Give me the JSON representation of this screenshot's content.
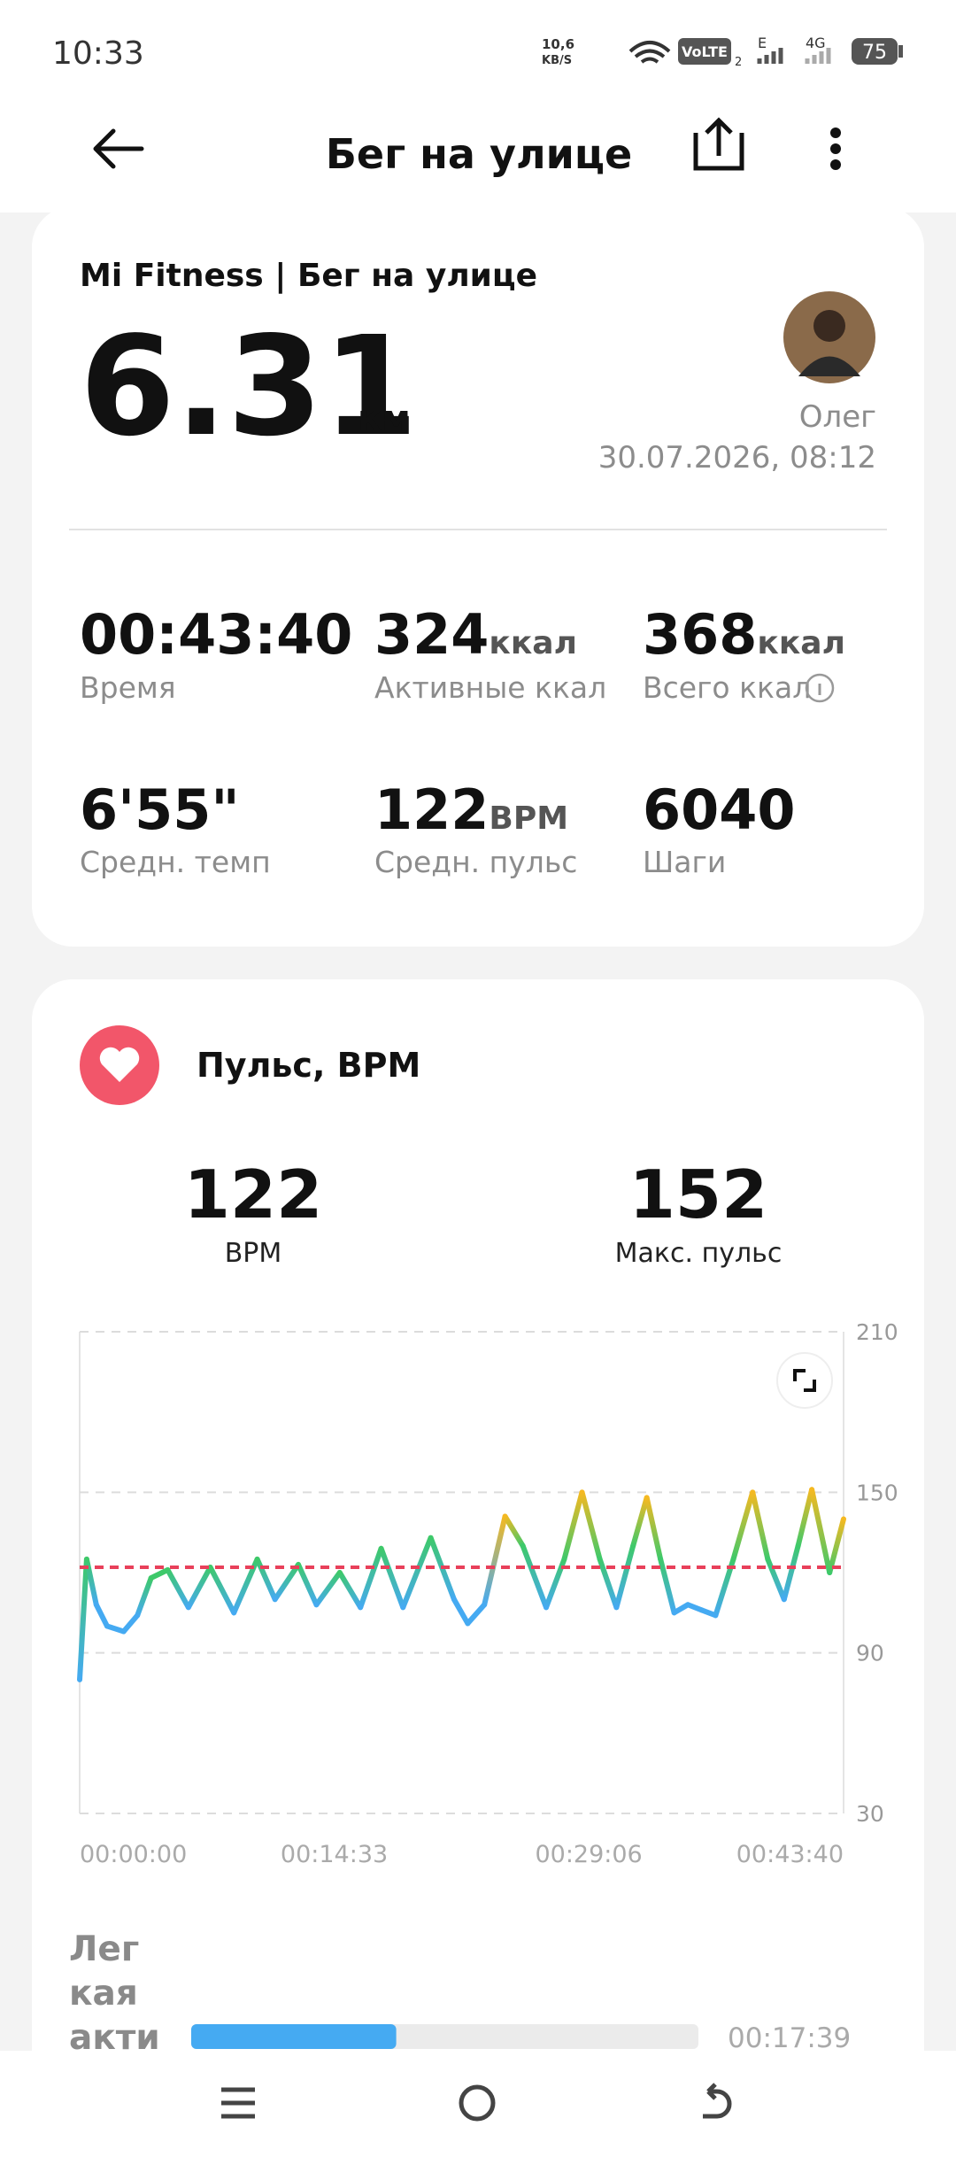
{
  "status_bar": {
    "time": "10:33",
    "net_speed": "10,6",
    "net_unit": "KB/S",
    "volte": "VoLTE",
    "sim": "2",
    "e": "E",
    "g4": "4G",
    "battery": "75"
  },
  "header": {
    "title": "Бег на улице"
  },
  "summary": {
    "source": "Mi Fitness | Бег на улице",
    "distance": "6.31",
    "distance_unit": "км",
    "user": "Олег",
    "datetime": "30.07.2026, 08:12",
    "stats": [
      {
        "value": "00:43:40",
        "label": "Время"
      },
      {
        "value": "324",
        "unit": "ккал",
        "label": "Активные ккал"
      },
      {
        "value": "368",
        "unit": "ккал",
        "label": "Всего ккал"
      },
      {
        "value": "6'55\"",
        "label": "Средн. темп"
      },
      {
        "value": "122",
        "unit": "BPM",
        "label": "Средн. пульс"
      },
      {
        "value": "6040",
        "label": "Шаги"
      }
    ]
  },
  "heart": {
    "title": "Пульс, BPM",
    "avg": "122",
    "avg_label": "BPM",
    "max": "152",
    "max_label": "Макс. пульс"
  },
  "chart_data": {
    "type": "line",
    "x": [
      0,
      24,
      57,
      94,
      151,
      198,
      245,
      302,
      373,
      448,
      529,
      609,
      670,
      750,
      812,
      892,
      963,
      1034,
      1109,
      1204,
      1284,
      1331,
      1388,
      1459,
      1520,
      1600,
      1662,
      1723,
      1784,
      1841,
      1898,
      1945,
      1992,
      2039,
      2086,
      2133,
      2181,
      2242,
      2308,
      2360,
      2416,
      2464,
      2511,
      2572,
      2620
    ],
    "values": [
      80,
      125,
      108,
      100,
      98,
      104,
      118,
      121,
      107,
      122,
      105,
      125,
      110,
      123,
      108,
      120,
      107,
      129,
      107,
      133,
      110,
      101,
      108,
      141,
      130,
      107,
      125,
      150,
      125,
      107,
      130,
      148,
      125,
      105,
      108,
      106,
      104,
      125,
      150,
      125,
      110,
      130,
      151,
      120,
      140
    ],
    "colors": [
      "#45aaf2",
      "#3ec96a",
      "#45aaf2",
      "#45aaf2",
      "#45aaf2",
      "#45aaf2",
      "#3ec96a",
      "#3ec96a",
      "#45aaf2",
      "#3ec96a",
      "#45aaf2",
      "#3ec96a",
      "#45aaf2",
      "#3ec96a",
      "#45aaf2",
      "#3ec96a",
      "#45aaf2",
      "#3ec96a",
      "#45aaf2",
      "#3ec96a",
      "#45aaf2",
      "#45aaf2",
      "#45aaf2",
      "#f5b921",
      "#3ec96a",
      "#45aaf2",
      "#3ec96a",
      "#f5b921",
      "#3ec96a",
      "#45aaf2",
      "#3ec96a",
      "#f5b921",
      "#3ec96a",
      "#45aaf2",
      "#45aaf2",
      "#45aaf2",
      "#45aaf2",
      "#3ec96a",
      "#f5b921",
      "#3ec96a",
      "#45aaf2",
      "#3ec96a",
      "#f5b921",
      "#3ec96a",
      "#f5b921"
    ],
    "xlim": [
      0,
      2620
    ],
    "xticks": [
      {
        "value": 0,
        "label": "00:00:00"
      },
      {
        "value": 873,
        "label": "00:14:33"
      },
      {
        "value": 1746,
        "label": "00:29:06"
      },
      {
        "value": 2620,
        "label": "00:43:40"
      }
    ],
    "ylim": [
      30,
      210
    ],
    "yticks": [
      30,
      90,
      150,
      210
    ],
    "grid": true,
    "average": 122,
    "average_color": "#e8405a"
  },
  "zone": {
    "label_lines": [
      "Лег",
      "кая",
      "акти"
    ],
    "time": "00:17:39",
    "color": "#45aaf2"
  }
}
